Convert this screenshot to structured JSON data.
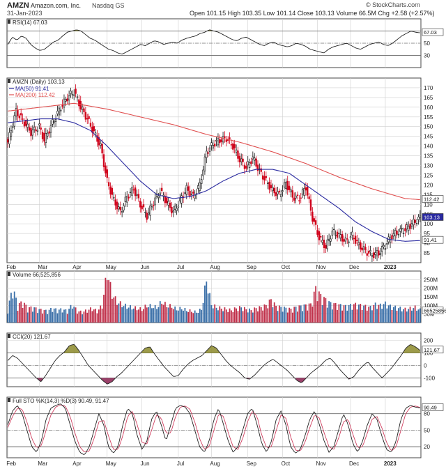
{
  "header": {
    "symbol": "AMZN",
    "company": "Amazon.com, Inc.",
    "exchange": "Nasdaq GS",
    "date": "31-Jan-2023",
    "watermark": "© StockCharts.com",
    "open_label": "Open",
    "open": "101.15",
    "high_label": "High",
    "high": "103.35",
    "low_label": "Low",
    "low": "101.14",
    "close_label": "Close",
    "close": "103.13",
    "volume_label": "Volume",
    "volume": "66.5M",
    "chg_label": "Chg",
    "chg": "+2.58 (+2.57%)"
  },
  "colors": {
    "up": "#111111",
    "down": "#d0021b",
    "ma50": "#2a2aa0",
    "ma200": "#e05050",
    "vol_up": "#3a6fa8",
    "vol_down": "#c0304a",
    "osc_fill_up": "#8c8a2a",
    "osc_fill_down": "#8a2050",
    "price_tag": "#2a2aa0",
    "grid": "#cfcfcf"
  },
  "chart_data": [
    {
      "type": "line",
      "title": "RSI(14) 67.03",
      "indicator": "RSI",
      "ylim": [
        10,
        90
      ],
      "y_ticks": [
        30,
        50,
        70
      ],
      "thresholds": [
        30,
        70
      ],
      "current_value": "67.03",
      "series": [
        {
          "name": "RSI(14)",
          "values": [
            48,
            60,
            55,
            62,
            58,
            48,
            42,
            38,
            40,
            46,
            52,
            55,
            62,
            68,
            70,
            72,
            70,
            64,
            58,
            55,
            50,
            45,
            40,
            38,
            34,
            32,
            36,
            40,
            44,
            48,
            46,
            50,
            54,
            52,
            48,
            50,
            52,
            50,
            55,
            58,
            60,
            62,
            66,
            68,
            72,
            70,
            68,
            64,
            60,
            56,
            54,
            58,
            60,
            56,
            52,
            48,
            46,
            50,
            52,
            48,
            46,
            44,
            46,
            50,
            48,
            45,
            40,
            38,
            36,
            34,
            40,
            44,
            46,
            48,
            50,
            46,
            42,
            40,
            44,
            48,
            50,
            52,
            48,
            46,
            50,
            56,
            62,
            66,
            70,
            68,
            67.03
          ]
        }
      ]
    },
    {
      "type": "candlestick",
      "title": "AMZN (Daily) 103.13",
      "ylim": [
        80,
        175
      ],
      "y_ticks": [
        85,
        90,
        95,
        100,
        105,
        110,
        115,
        120,
        125,
        130,
        135,
        140,
        145,
        150,
        155,
        160,
        165,
        170
      ],
      "x_tick_labels": [
        "Feb",
        "Mar",
        "Apr",
        "May",
        "Jun",
        "Jul",
        "Aug",
        "Sep",
        "Oct",
        "Nov",
        "Dec",
        "2023"
      ],
      "x_tick_positions": [
        0,
        19,
        40,
        60,
        81,
        103,
        123,
        145,
        166,
        187,
        207,
        228
      ],
      "num_periods": 250,
      "close_key": [
        [
          0,
          142
        ],
        [
          5,
          158
        ],
        [
          10,
          152
        ],
        [
          14,
          147
        ],
        [
          19,
          150
        ],
        [
          22,
          143
        ],
        [
          27,
          152
        ],
        [
          32,
          160
        ],
        [
          36,
          165
        ],
        [
          40,
          168
        ],
        [
          44,
          160
        ],
        [
          48,
          154
        ],
        [
          52,
          147
        ],
        [
          56,
          140
        ],
        [
          60,
          122
        ],
        [
          64,
          112
        ],
        [
          68,
          106
        ],
        [
          72,
          114
        ],
        [
          76,
          118
        ],
        [
          80,
          110
        ],
        [
          84,
          104
        ],
        [
          88,
          111
        ],
        [
          92,
          117
        ],
        [
          96,
          111
        ],
        [
          100,
          106
        ],
        [
          104,
          112
        ],
        [
          108,
          118
        ],
        [
          112,
          114
        ],
        [
          116,
          120
        ],
        [
          120,
          137
        ],
        [
          124,
          141
        ],
        [
          128,
          143
        ],
        [
          132,
          144
        ],
        [
          136,
          140
        ],
        [
          140,
          133
        ],
        [
          144,
          129
        ],
        [
          148,
          134
        ],
        [
          152,
          127
        ],
        [
          156,
          122
        ],
        [
          160,
          117
        ],
        [
          164,
          115
        ],
        [
          168,
          121
        ],
        [
          172,
          114
        ],
        [
          176,
          113
        ],
        [
          180,
          119
        ],
        [
          184,
          103
        ],
        [
          188,
          93
        ],
        [
          192,
          88
        ],
        [
          196,
          96
        ],
        [
          200,
          94
        ],
        [
          204,
          91
        ],
        [
          208,
          94
        ],
        [
          212,
          89
        ],
        [
          216,
          86
        ],
        [
          220,
          84
        ],
        [
          224,
          85
        ],
        [
          228,
          89
        ],
        [
          232,
          94
        ],
        [
          236,
          96
        ],
        [
          240,
          97
        ],
        [
          244,
          100
        ],
        [
          249,
          103.13
        ]
      ],
      "series": [
        {
          "name": "MA(50) 91.41",
          "points": [
            [
              0,
              152
            ],
            [
              10,
              153
            ],
            [
              20,
              154
            ],
            [
              30,
              154
            ],
            [
              40,
              152
            ],
            [
              50,
              148
            ],
            [
              60,
              140
            ],
            [
              70,
              131
            ],
            [
              80,
              122
            ],
            [
              90,
              115
            ],
            [
              100,
              113
            ],
            [
              110,
              114
            ],
            [
              120,
              117
            ],
            [
              130,
              122
            ],
            [
              140,
              126
            ],
            [
              150,
              128
            ],
            [
              160,
              128
            ],
            [
              170,
              126
            ],
            [
              180,
              120
            ],
            [
              190,
              114
            ],
            [
              200,
              108
            ],
            [
              210,
              101
            ],
            [
              220,
              96
            ],
            [
              230,
              92
            ],
            [
              240,
              91
            ],
            [
              249,
              91.41
            ]
          ]
        },
        {
          "name": "MA(200) 112.42",
          "points": [
            [
              0,
              158
            ],
            [
              20,
              160
            ],
            [
              40,
              162
            ],
            [
              60,
              159
            ],
            [
              80,
              155
            ],
            [
              100,
              151
            ],
            [
              120,
              146
            ],
            [
              140,
              142
            ],
            [
              160,
              137
            ],
            [
              180,
              131
            ],
            [
              200,
              124
            ],
            [
              220,
              118
            ],
            [
              240,
              113
            ],
            [
              249,
              112.42
            ]
          ]
        }
      ],
      "price_tags": [
        "112.42",
        "103.13",
        "91.41"
      ]
    },
    {
      "type": "bar",
      "title": "Volume 66,525,856",
      "ylim": [
        0,
        300
      ],
      "y_ticks": [
        50,
        100,
        150,
        200,
        250
      ],
      "y_tick_labels": [
        "50M",
        "100M",
        "150M",
        "200M",
        "250M"
      ],
      "units": "M shares",
      "current_value": "66525856",
      "values_key": [
        [
          0,
          70
        ],
        [
          3,
          185
        ],
        [
          6,
          90
        ],
        [
          9,
          110
        ],
        [
          12,
          75
        ],
        [
          15,
          80
        ],
        [
          18,
          70
        ],
        [
          21,
          65
        ],
        [
          24,
          60
        ],
        [
          27,
          75
        ],
        [
          30,
          65
        ],
        [
          33,
          70
        ],
        [
          36,
          60
        ],
        [
          39,
          95
        ],
        [
          42,
          60
        ],
        [
          45,
          55
        ],
        [
          48,
          65
        ],
        [
          51,
          75
        ],
        [
          54,
          60
        ],
        [
          57,
          90
        ],
        [
          60,
          270
        ],
        [
          63,
          150
        ],
        [
          66,
          110
        ],
        [
          69,
          95
        ],
        [
          72,
          85
        ],
        [
          75,
          80
        ],
        [
          78,
          75
        ],
        [
          81,
          70
        ],
        [
          84,
          90
        ],
        [
          87,
          85
        ],
        [
          90,
          80
        ],
        [
          93,
          110
        ],
        [
          96,
          90
        ],
        [
          99,
          85
        ],
        [
          102,
          70
        ],
        [
          105,
          75
        ],
        [
          108,
          65
        ],
        [
          111,
          60
        ],
        [
          114,
          55
        ],
        [
          117,
          70
        ],
        [
          120,
          225
        ],
        [
          123,
          95
        ],
        [
          126,
          80
        ],
        [
          129,
          75
        ],
        [
          132,
          70
        ],
        [
          135,
          65
        ],
        [
          138,
          75
        ],
        [
          141,
          80
        ],
        [
          144,
          70
        ],
        [
          147,
          65
        ],
        [
          150,
          75
        ],
        [
          153,
          80
        ],
        [
          156,
          90
        ],
        [
          159,
          120
        ],
        [
          162,
          85
        ],
        [
          165,
          80
        ],
        [
          168,
          75
        ],
        [
          171,
          70
        ],
        [
          174,
          80
        ],
        [
          177,
          85
        ],
        [
          180,
          90
        ],
        [
          183,
          95
        ],
        [
          186,
          180
        ],
        [
          189,
          140
        ],
        [
          192,
          120
        ],
        [
          195,
          100
        ],
        [
          198,
          95
        ],
        [
          201,
          90
        ],
        [
          204,
          85
        ],
        [
          207,
          90
        ],
        [
          210,
          95
        ],
        [
          213,
          90
        ],
        [
          216,
          85
        ],
        [
          219,
          80
        ],
        [
          222,
          95
        ],
        [
          225,
          90
        ],
        [
          228,
          100
        ],
        [
          231,
          85
        ],
        [
          234,
          80
        ],
        [
          237,
          75
        ],
        [
          240,
          70
        ],
        [
          243,
          75
        ],
        [
          246,
          80
        ],
        [
          249,
          66.5
        ]
      ],
      "price_tag": "66525856"
    },
    {
      "type": "line",
      "title": "CCI(20) 121.67",
      "indicator": "CCI",
      "ylim": [
        -170,
        260
      ],
      "y_ticks": [
        -100,
        0,
        100,
        200
      ],
      "thresholds": [
        -100,
        100
      ],
      "current_value": "121.67",
      "series": [
        {
          "name": "CCI(20)",
          "values": [
            40,
            80,
            60,
            20,
            -20,
            -60,
            -100,
            -130,
            -80,
            -20,
            40,
            80,
            110,
            160,
            170,
            120,
            60,
            0,
            -40,
            -80,
            -120,
            -150,
            -130,
            -90,
            -60,
            -20,
            20,
            60,
            100,
            140,
            150,
            90,
            40,
            -10,
            -50,
            -90,
            -80,
            -30,
            10,
            40,
            60,
            80,
            120,
            160,
            140,
            90,
            40,
            0,
            -30,
            -60,
            -100,
            -110,
            -80,
            -40,
            0,
            30,
            50,
            20,
            -10,
            -40,
            -80,
            -120,
            -140,
            -100,
            -60,
            -30,
            0,
            40,
            60,
            20,
            -30,
            -70,
            -110,
            -90,
            -40,
            0,
            30,
            -20,
            -60,
            -100,
            -60,
            -20,
            30,
            80,
            140,
            170,
            150,
            121.67
          ]
        }
      ]
    },
    {
      "type": "line",
      "title": "Full STO %K(14,3) %D(3) 90.49, 91.47",
      "indicator": "STO",
      "ylim": [
        0,
        110
      ],
      "y_ticks": [
        20,
        50,
        80
      ],
      "thresholds": [
        20,
        80
      ],
      "current_value": "90.49",
      "x_tick_labels": [
        "Feb",
        "Mar",
        "Apr",
        "May",
        "Jun",
        "Jul",
        "Aug",
        "Sep",
        "Oct",
        "Nov",
        "Dec",
        "2023"
      ],
      "series": [
        {
          "name": "%K(14,3) 90.49",
          "values": [
            60,
            85,
            95,
            80,
            50,
            20,
            10,
            30,
            70,
            90,
            95,
            98,
            90,
            60,
            30,
            10,
            5,
            20,
            50,
            80,
            60,
            20,
            8,
            20,
            60,
            90,
            80,
            40,
            15,
            30,
            70,
            85,
            60,
            30,
            60,
            90,
            95,
            92,
            80,
            50,
            20,
            10,
            30,
            70,
            90,
            60,
            30,
            10,
            20,
            50,
            80,
            90,
            60,
            25,
            10,
            30,
            70,
            85,
            60,
            20,
            8,
            15,
            40,
            70,
            85,
            60,
            30,
            10,
            20,
            50,
            80,
            60,
            25,
            10,
            30,
            60,
            80,
            70,
            40,
            15,
            10,
            30,
            70,
            90,
            95,
            92,
            90.49
          ]
        },
        {
          "name": "%D(3) 91.47",
          "values": [
            55,
            75,
            90,
            88,
            65,
            35,
            18,
            22,
            50,
            78,
            92,
            96,
            94,
            75,
            45,
            20,
            10,
            12,
            35,
            65,
            68,
            40,
            15,
            15,
            40,
            75,
            85,
            60,
            28,
            25,
            50,
            78,
            72,
            45,
            45,
            75,
            92,
            94,
            88,
            65,
            35,
            15,
            20,
            50,
            80,
            75,
            45,
            20,
            15,
            35,
            65,
            85,
            75,
            40,
            18,
            20,
            50,
            78,
            72,
            38,
            14,
            12,
            28,
            55,
            78,
            72,
            45,
            20,
            15,
            35,
            65,
            70,
            42,
            18,
            20,
            45,
            70,
            75,
            55,
            28,
            12,
            20,
            50,
            80,
            92,
            94,
            91.47
          ]
        }
      ],
      "tags": [
        "90.49"
      ]
    }
  ]
}
